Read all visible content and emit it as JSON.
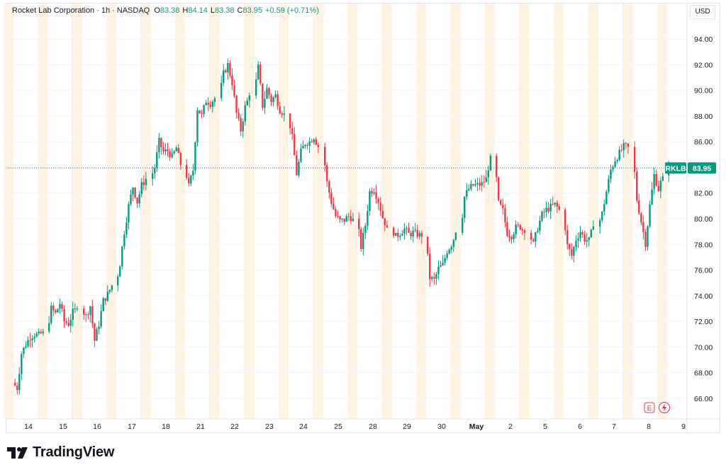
{
  "legend": {
    "symbol": "Rocket Lab Corporation",
    "interval": "1h",
    "exchange": "NASDAQ",
    "open_label": "O",
    "open": "83.38",
    "high_label": "H",
    "high": "84.14",
    "low_label": "L",
    "low": "83.38",
    "close_label": "C",
    "close": "83.95",
    "change": "+0.59 (+0.71%)"
  },
  "currency": "USD",
  "price_tag": {
    "ticker": "RKLB",
    "price": "83.95"
  },
  "badges": {
    "earnings": "E",
    "dividend_icon": "bolt-icon"
  },
  "brand": "TradingView",
  "colors": {
    "up": "#089981",
    "down": "#f23645",
    "session_pre": "#fff3e4",
    "session_post": "#e8efff",
    "grid": "#f0f3fa",
    "last_line": "#089981"
  },
  "chart_data": {
    "type": "candlestick",
    "title": "Rocket Lab Corporation · 1h · NASDAQ",
    "ylim": [
      64.5,
      95.5
    ],
    "yticks": [
      "94.00",
      "92.00",
      "90.00",
      "88.00",
      "86.00",
      "84.00",
      "82.00",
      "80.00",
      "78.00",
      "76.00",
      "74.00",
      "72.00",
      "70.00",
      "68.00",
      "66.00"
    ],
    "xticks": [
      "14",
      "15",
      "16",
      "17",
      "18",
      "21",
      "22",
      "23",
      "24",
      "25",
      "28",
      "29",
      "30",
      "May",
      "2",
      "5",
      "6",
      "7",
      "8",
      "9"
    ],
    "grid": true,
    "last_price": 83.95,
    "days": [
      {
        "label": "14",
        "points": [
          67.2,
          66.8,
          69.5,
          70.2,
          70.8,
          71.0,
          70.9,
          71.2
        ]
      },
      {
        "label": "15",
        "points": [
          71.2,
          73.0,
          72.6,
          73.4,
          72.0,
          71.8,
          72.7,
          73.0
        ]
      },
      {
        "label": "16",
        "points": [
          73.0,
          72.4,
          73.2,
          70.5,
          71.8,
          73.6,
          74.1,
          74.8
        ]
      },
      {
        "label": "17",
        "points": [
          74.8,
          76.5,
          79.0,
          81.0,
          82.5,
          81.3,
          82.6,
          83.1
        ]
      },
      {
        "label": "18",
        "points": [
          83.1,
          84.0,
          86.0,
          85.2,
          85.3,
          84.8,
          85.5,
          84.2
        ]
      },
      {
        "label": "21",
        "points": [
          84.2,
          82.5,
          83.8,
          88.6,
          88.0,
          89.2,
          89.0,
          89.4
        ]
      },
      {
        "label": "22",
        "points": [
          89.4,
          91.3,
          92.0,
          90.6,
          88.2,
          86.9,
          88.7,
          89.6
        ]
      },
      {
        "label": "23",
        "points": [
          89.6,
          91.8,
          88.8,
          90.1,
          89.2,
          89.6,
          88.5,
          88.2
        ]
      },
      {
        "label": "24",
        "points": [
          88.2,
          86.3,
          83.5,
          85.2,
          85.9,
          86.0,
          86.4,
          85.6
        ]
      },
      {
        "label": "25",
        "points": [
          85.6,
          82.8,
          81.3,
          80.2,
          79.8,
          79.9,
          80.2,
          80.0
        ]
      },
      {
        "label": "28",
        "points": [
          80.0,
          77.8,
          79.5,
          82.1,
          82.3,
          81.4,
          80.1,
          79.3
        ]
      },
      {
        "label": "29",
        "points": [
          79.3,
          78.6,
          78.9,
          79.2,
          78.8,
          78.9,
          78.8,
          78.6
        ]
      },
      {
        "label": "30",
        "points": [
          78.6,
          75.4,
          75.2,
          76.1,
          76.4,
          77.5,
          78.0,
          78.9
        ]
      },
      {
        "label": "May",
        "points": [
          78.9,
          81.7,
          82.3,
          82.6,
          82.6,
          82.7,
          83.1,
          84.9
        ]
      },
      {
        "label": "2",
        "points": [
          84.9,
          81.2,
          80.6,
          78.9,
          78.7,
          79.3,
          79.4,
          78.9
        ]
      },
      {
        "label": "5",
        "points": [
          78.9,
          78.0,
          79.3,
          80.3,
          80.7,
          80.9,
          81.1,
          80.7
        ]
      },
      {
        "label": "6",
        "points": [
          80.7,
          77.9,
          77.1,
          78.4,
          79.0,
          78.4,
          78.3,
          79.4
        ]
      },
      {
        "label": "7",
        "points": [
          79.4,
          80.4,
          82.1,
          83.8,
          84.6,
          85.1,
          85.6,
          85.6
        ]
      },
      {
        "label": "8",
        "points": [
          85.6,
          81.5,
          79.8,
          78.1,
          81.0,
          83.4,
          82.3,
          83.3
        ]
      },
      {
        "label": "8-last",
        "points": [
          83.38,
          83.95
        ]
      }
    ]
  }
}
